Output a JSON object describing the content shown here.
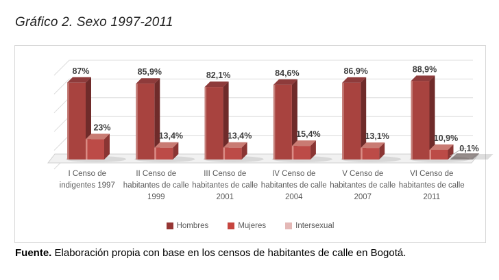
{
  "page": {
    "title": "Gráfico 2. Sexo 1997-2011"
  },
  "source_note": {
    "label": "Fuente.",
    "text": " Elaboración propia con base en los censos de habitantes de calle en Bogotá."
  },
  "chart_data": {
    "type": "bar",
    "variant": "3d-clustered-column",
    "categories": [
      "I Censo de indigentes 1997",
      "II Censo de habitantes de calle 1999",
      "III Censo de habitantes de calle 2001",
      "IV Censo de habitantes de calle 2004",
      "V Censo de habitantes de calle 2007",
      "VI Censo de habitantes de calle 2011"
    ],
    "series": [
      {
        "name": "Hombres",
        "values": [
          87,
          85.9,
          82.1,
          84.6,
          86.9,
          88.9
        ],
        "data_labels": [
          "87%",
          "85,9%",
          "82,1%",
          "84,6%",
          "86,9%",
          "88,9%"
        ],
        "colors": {
          "front": "#A8433F",
          "side": "#6F2B2A",
          "top": "#8E3B3B",
          "highlight": "#C47E79",
          "legend": "#963634"
        }
      },
      {
        "name": "Mujeres",
        "values": [
          23,
          13.4,
          13.4,
          15.4,
          13.1,
          10.9
        ],
        "data_labels": [
          "23%",
          "13,4%",
          "13,4%",
          "15,4%",
          "13,1%",
          "10,9%"
        ],
        "colors": {
          "front": "#BC4B47",
          "side": "#8A3533",
          "top": "#C97B73",
          "highlight": "#DA8B84",
          "legend": "#C6453F"
        }
      },
      {
        "name": "Intersexual",
        "values": [
          0,
          0,
          0,
          0,
          0,
          0.1
        ],
        "data_labels": [
          "",
          "",
          "",
          "",
          "",
          "0,1%"
        ],
        "colors": {
          "front": "#E4B8B6",
          "side": "#C99693",
          "top": "#EDCCCA",
          "highlight": "#F2DCDA",
          "legend": "#E4B8B6"
        }
      }
    ],
    "legend": {
      "position": "bottom",
      "entries": [
        "Hombres",
        "Mujeres",
        "Intersexual"
      ]
    },
    "value_axis": {
      "min": 0,
      "max": 100,
      "labels_visible": false
    },
    "gridlines": true,
    "label_color": "#3F3F3F",
    "axis_text_color": "#595959",
    "gridline_color": "#DCDCDC"
  }
}
